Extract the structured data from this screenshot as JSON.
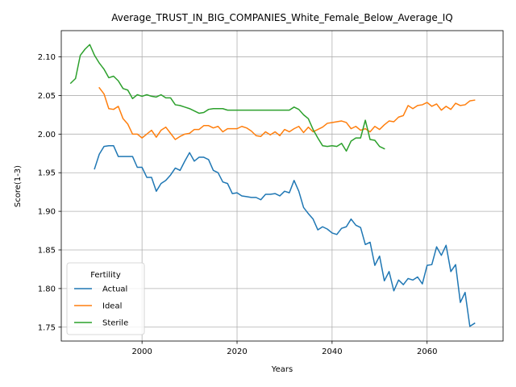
{
  "chart_data": {
    "type": "line",
    "title": "Average_TRUST_IN_BIG_COMPANIES_White_Female_Below_Average_IQ",
    "xlabel": "Years",
    "ylabel": "Score(1-3)",
    "xlim": [
      1983,
      2076
    ],
    "ylim": [
      1.732,
      2.134
    ],
    "xticks": [
      2000,
      2020,
      2040,
      2060
    ],
    "yticks": [
      1.75,
      1.8,
      1.85,
      1.9,
      1.95,
      2.0,
      2.05,
      2.1
    ],
    "ytick_labels": [
      "1.75",
      "1.80",
      "1.85",
      "1.90",
      "1.95",
      "2.00",
      "2.05",
      "2.10"
    ],
    "grid": true,
    "legend": {
      "title": "Fertility",
      "location": "lower-left"
    },
    "series": [
      {
        "name": "Actual",
        "color": "#1f77b4",
        "x": [
          1990,
          1991,
          1992,
          1993,
          1994,
          1995,
          1996,
          1997,
          1998,
          1999,
          2000,
          2001,
          2002,
          2003,
          2004,
          2005,
          2006,
          2007,
          2008,
          2009,
          2010,
          2011,
          2012,
          2013,
          2014,
          2015,
          2016,
          2017,
          2018,
          2019,
          2020,
          2021,
          2022,
          2023,
          2024,
          2025,
          2026,
          2027,
          2028,
          2029,
          2030,
          2031,
          2032,
          2033,
          2034,
          2035,
          2036,
          2037,
          2038,
          2039,
          2040,
          2041,
          2042,
          2043,
          2044,
          2045,
          2046,
          2047,
          2048,
          2049,
          2050,
          2051,
          2052,
          2053,
          2054,
          2055,
          2056,
          2057,
          2058,
          2059,
          2060,
          2061,
          2062,
          2063,
          2064,
          2065,
          2066,
          2067,
          2068,
          2069,
          2070
        ],
        "values": [
          1.955,
          1.974,
          1.984,
          1.985,
          1.985,
          1.971,
          1.971,
          1.971,
          1.971,
          1.957,
          1.957,
          1.944,
          1.944,
          1.926,
          1.936,
          1.94,
          1.947,
          1.956,
          1.953,
          1.965,
          1.976,
          1.965,
          1.97,
          1.97,
          1.967,
          1.953,
          1.95,
          1.938,
          1.936,
          1.923,
          1.924,
          1.92,
          1.919,
          1.918,
          1.918,
          1.915,
          1.922,
          1.922,
          1.923,
          1.92,
          1.926,
          1.924,
          1.94,
          1.926,
          1.905,
          1.897,
          1.89,
          1.876,
          1.88,
          1.877,
          1.872,
          1.87,
          1.878,
          1.88,
          1.89,
          1.882,
          1.879,
          1.857,
          1.86,
          1.83,
          1.842,
          1.81,
          1.822,
          1.797,
          1.811,
          1.805,
          1.813,
          1.811,
          1.815,
          1.806,
          1.83,
          1.831,
          1.854,
          1.843,
          1.856,
          1.822,
          1.831,
          1.782,
          1.795,
          1.751,
          1.755
        ]
      },
      {
        "name": "Ideal",
        "color": "#ff7f0e",
        "x": [
          1991,
          1992,
          1993,
          1994,
          1995,
          1996,
          1997,
          1998,
          1999,
          2000,
          2001,
          2002,
          2003,
          2004,
          2005,
          2006,
          2007,
          2008,
          2009,
          2010,
          2011,
          2012,
          2013,
          2014,
          2015,
          2016,
          2017,
          2018,
          2019,
          2020,
          2021,
          2022,
          2023,
          2024,
          2025,
          2026,
          2027,
          2028,
          2029,
          2030,
          2031,
          2032,
          2033,
          2034,
          2035,
          2036,
          2037,
          2038,
          2039,
          2040,
          2041,
          2042,
          2043,
          2044,
          2045,
          2046,
          2047,
          2048,
          2049,
          2050,
          2051,
          2052,
          2053,
          2054,
          2055,
          2056,
          2057,
          2058,
          2059,
          2060,
          2061,
          2062,
          2063,
          2064,
          2065,
          2066,
          2067,
          2068,
          2069,
          2070
        ],
        "values": [
          2.06,
          2.052,
          2.033,
          2.032,
          2.036,
          2.02,
          2.013,
          2.0,
          2.0,
          1.995,
          2.0,
          2.005,
          1.996,
          2.005,
          2.009,
          2.001,
          1.993,
          1.997,
          2.0,
          2.001,
          2.006,
          2.006,
          2.011,
          2.011,
          2.008,
          2.01,
          2.003,
          2.007,
          2.007,
          2.007,
          2.01,
          2.008,
          2.004,
          1.998,
          1.997,
          2.003,
          1.999,
          2.003,
          1.998,
          2.006,
          2.003,
          2.007,
          2.01,
          2.002,
          2.009,
          2.003,
          2.006,
          2.009,
          2.014,
          2.015,
          2.016,
          2.017,
          2.015,
          2.007,
          2.01,
          2.005,
          2.007,
          2.003,
          2.01,
          2.006,
          2.012,
          2.017,
          2.016,
          2.022,
          2.024,
          2.037,
          2.033,
          2.037,
          2.038,
          2.041,
          2.036,
          2.039,
          2.031,
          2.036,
          2.032,
          2.04,
          2.037,
          2.038,
          2.043,
          2.044
        ]
      },
      {
        "name": "Sterile",
        "color": "#2ca02c",
        "x": [
          1985,
          1986,
          1987,
          1988,
          1989,
          1990,
          1991,
          1992,
          1993,
          1994,
          1995,
          1996,
          1997,
          1998,
          1999,
          2000,
          2001,
          2002,
          2003,
          2004,
          2005,
          2006,
          2007,
          2008,
          2009,
          2010,
          2011,
          2012,
          2013,
          2014,
          2015,
          2016,
          2017,
          2018,
          2019,
          2020,
          2021,
          2022,
          2023,
          2024,
          2025,
          2026,
          2027,
          2028,
          2029,
          2030,
          2031,
          2032,
          2033,
          2034,
          2035,
          2036,
          2037,
          2038,
          2039,
          2040,
          2041,
          2042,
          2043,
          2044,
          2045,
          2046,
          2047,
          2048,
          2049,
          2050,
          2051
        ],
        "values": [
          2.066,
          2.072,
          2.102,
          2.11,
          2.116,
          2.102,
          2.092,
          2.084,
          2.073,
          2.075,
          2.069,
          2.059,
          2.057,
          2.046,
          2.051,
          2.049,
          2.051,
          2.049,
          2.048,
          2.051,
          2.047,
          2.047,
          2.038,
          2.037,
          2.035,
          2.033,
          2.03,
          2.027,
          2.028,
          2.032,
          2.033,
          2.033,
          2.033,
          2.031,
          2.031,
          2.031,
          2.031,
          2.031,
          2.031,
          2.031,
          2.031,
          2.031,
          2.031,
          2.031,
          2.031,
          2.031,
          2.031,
          2.035,
          2.032,
          2.025,
          2.02,
          2.006,
          1.995,
          1.985,
          1.984,
          1.985,
          1.984,
          1.988,
          1.978,
          1.991,
          1.995,
          1.995,
          2.018,
          1.993,
          1.992,
          1.984,
          1.981
        ]
      }
    ]
  }
}
